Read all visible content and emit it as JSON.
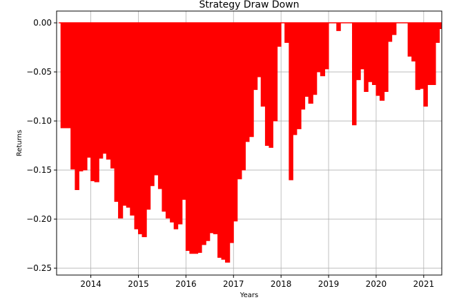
{
  "chart_data": {
    "type": "area",
    "title": "Strategy Draw Down",
    "xlabel": "Years",
    "ylabel": "Returns",
    "xlim": [
      2013.28,
      2021.38
    ],
    "ylim": [
      -0.257,
      0.012
    ],
    "x_ticks": [
      2014,
      2015,
      2016,
      2017,
      2018,
      2019,
      2020,
      2021
    ],
    "x_tick_labels": [
      "2014",
      "2015",
      "2016",
      "2017",
      "2018",
      "2019",
      "2020",
      "2021"
    ],
    "y_ticks": [
      0.0,
      -0.05,
      -0.1,
      -0.15,
      -0.2,
      -0.25
    ],
    "y_tick_labels": [
      "0.00",
      "−0.05",
      "−0.10",
      "−0.15",
      "−0.20",
      "−0.25"
    ],
    "grid": true,
    "fill_color": "#ff0000",
    "series": [
      {
        "x": [
          2013.33,
          2013.37,
          2013.5,
          2013.58,
          2013.67,
          2013.75,
          2013.83,
          2013.92,
          2014.0,
          2014.08,
          2014.17,
          2014.25,
          2014.33,
          2014.42,
          2014.5,
          2014.58,
          2014.67,
          2014.75,
          2014.83,
          2014.92,
          2015.0,
          2015.08,
          2015.17,
          2015.25,
          2015.33,
          2015.42,
          2015.5,
          2015.58,
          2015.67,
          2015.75,
          2015.83,
          2015.92,
          2016.0,
          2016.08,
          2016.17,
          2016.25,
          2016.33,
          2016.42,
          2016.5,
          2016.58,
          2016.67,
          2016.75,
          2016.83,
          2016.92,
          2017.0,
          2017.08,
          2017.17,
          2017.25,
          2017.33,
          2017.42,
          2017.5,
          2017.58,
          2017.67,
          2017.75,
          2017.83,
          2017.92,
          2018.0,
          2018.08,
          2018.17,
          2018.25,
          2018.33,
          2018.42,
          2018.5,
          2018.58,
          2018.67,
          2018.75,
          2018.83,
          2018.92,
          2019.0,
          2019.08,
          2019.17,
          2019.25,
          2019.33,
          2019.42,
          2019.5,
          2019.58,
          2019.67,
          2019.75,
          2019.83,
          2019.92,
          2020.0,
          2020.08,
          2020.17,
          2020.25,
          2020.33,
          2020.42,
          2020.5,
          2020.58,
          2020.67,
          2020.75,
          2020.83,
          2020.92,
          2021.0,
          2021.08,
          2021.17,
          2021.25,
          2021.33,
          2021.38
        ],
        "values": [
          0.0,
          -0.107,
          -0.107,
          -0.149,
          -0.17,
          -0.151,
          -0.15,
          -0.137,
          -0.161,
          -0.162,
          -0.138,
          -0.133,
          -0.139,
          -0.148,
          -0.182,
          -0.199,
          -0.186,
          -0.188,
          -0.196,
          -0.21,
          -0.215,
          -0.218,
          -0.19,
          -0.166,
          -0.155,
          -0.169,
          -0.192,
          -0.199,
          -0.203,
          -0.21,
          -0.205,
          -0.18,
          -0.232,
          -0.235,
          -0.235,
          -0.234,
          -0.226,
          -0.222,
          -0.214,
          -0.215,
          -0.239,
          -0.241,
          -0.244,
          -0.224,
          -0.202,
          -0.159,
          -0.15,
          -0.121,
          -0.116,
          -0.068,
          -0.055,
          -0.085,
          -0.125,
          -0.127,
          -0.1,
          -0.024,
          0.0,
          -0.02,
          -0.16,
          -0.114,
          -0.108,
          -0.088,
          -0.075,
          -0.082,
          -0.073,
          -0.05,
          -0.054,
          -0.047,
          0.0,
          0.0,
          -0.008,
          0.0,
          0.0,
          0.0,
          -0.104,
          -0.058,
          -0.047,
          -0.07,
          -0.06,
          -0.063,
          -0.074,
          -0.079,
          -0.07,
          -0.019,
          -0.012,
          0.0,
          0.0,
          0.0,
          -0.034,
          -0.039,
          -0.068,
          -0.067,
          -0.085,
          -0.063,
          -0.063,
          -0.02,
          -0.006,
          -0.014
        ]
      }
    ]
  }
}
